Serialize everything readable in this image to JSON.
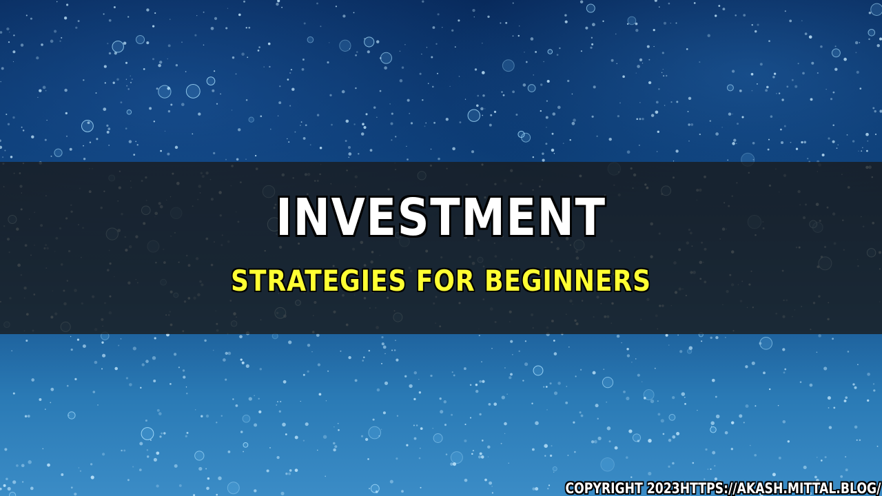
{
  "banner": {
    "title": "INVESTMENT",
    "subtitle": "STRATEGIES FOR BEGINNERS",
    "copyright": "COPYRIGHT 2023HTTPS://AKASH.MITTAL.BLOG/"
  },
  "colors": {
    "title": "#ffffff",
    "subtitle": "#ffff33",
    "band": "#191919",
    "background_top": "#082a5c",
    "background_bottom": "#3b8cc6"
  }
}
